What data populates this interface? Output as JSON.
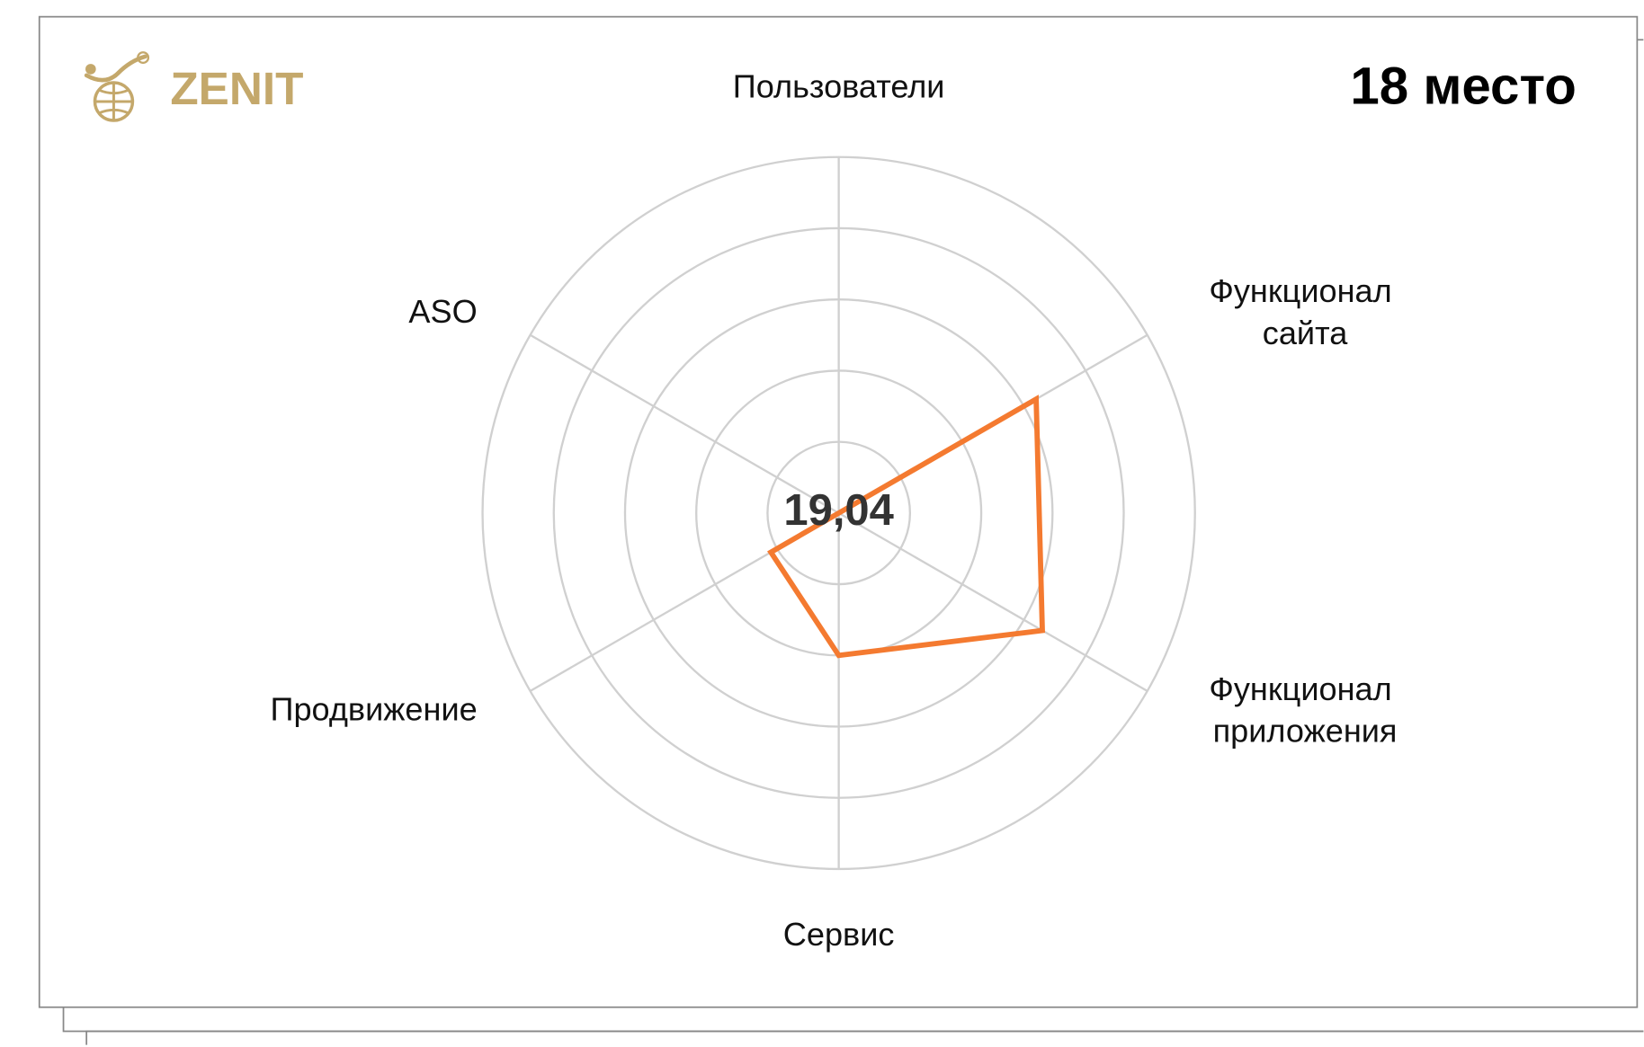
{
  "logo": "ZENIT",
  "rank": "18 место",
  "chart_data": {
    "type": "radar",
    "categories": [
      "Пользователи",
      "Функционал сайта",
      "Функционал приложения",
      "Сервис",
      "Продвижение",
      "ASO"
    ],
    "values": [
      0,
      3.2,
      3.3,
      2.0,
      1.1,
      0
    ],
    "color": "#f47a30",
    "rlim": [
      0,
      5
    ],
    "rticks": [
      1,
      2,
      3,
      4,
      5
    ],
    "grid": true,
    "center_label": "19,04"
  }
}
